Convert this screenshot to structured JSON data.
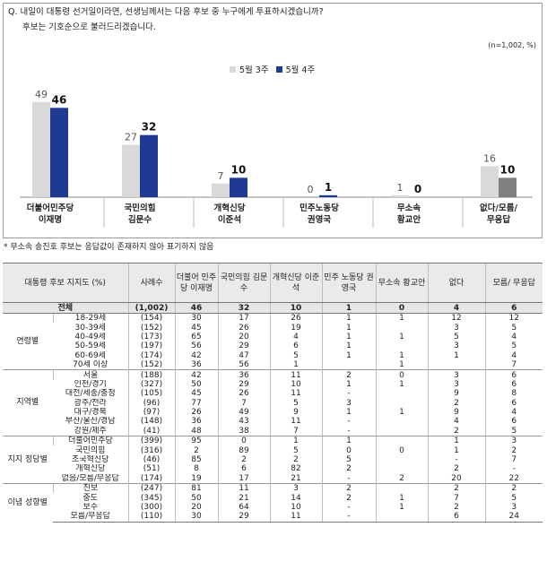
{
  "question": "Q. 내일이 대통령 선거일이라면, 선생님께서는 다음 후보 중 누구에게 투표하시겠습니까?",
  "question_note": "후보는 기호순으로 불러드리겠습니다.",
  "sample_note": "(n=1,002, %)",
  "footnote": "* 무소속 송진호 후보는 응답값이 존재하지 않아 표기하지 않음",
  "colors": {
    "week3": "#d9d9d9",
    "week4": "#1f3a93",
    "week4_undecided": "#7f7f7f"
  },
  "chart_data": {
    "type": "bar",
    "categories": [
      [
        "더불어민주당",
        "이재명"
      ],
      [
        "국민의힘",
        "김문수"
      ],
      [
        "개혁신당",
        "이준석"
      ],
      [
        "민주노동당",
        "권영국"
      ],
      [
        "무소속",
        "황교안"
      ],
      [
        "없다/모름/",
        "무응답"
      ]
    ],
    "series": [
      {
        "name": "5월 3주",
        "values": [
          49,
          27,
          7,
          0,
          1,
          16
        ]
      },
      {
        "name": "5월 4주",
        "values": [
          46,
          32,
          10,
          1,
          0,
          10
        ]
      }
    ],
    "ylim": [
      0,
      60
    ],
    "grid": false,
    "legend_position": "top"
  },
  "table": {
    "headers": [
      "대통령 후보 지지도 (%)",
      "",
      "사례수",
      "더불어 민주당 이재명",
      "국민의힘 김문수",
      "개혁신당 이준석",
      "민주 노동당 권영국",
      "무소속 황교안",
      "없다",
      "모름/ 무응답"
    ],
    "total": [
      "전체",
      "(1,002)",
      "46",
      "32",
      "10",
      "1",
      "0",
      "4",
      "6"
    ],
    "groups": [
      {
        "name": "연령별",
        "rows": [
          [
            "18-29세",
            "(154)",
            "30",
            "17",
            "26",
            "1",
            "1",
            "12",
            "12"
          ],
          [
            "30-39세",
            "(152)",
            "45",
            "26",
            "19",
            "1",
            "",
            "3",
            "5"
          ],
          [
            "40-49세",
            "(173)",
            "65",
            "20",
            "4",
            "1",
            "1",
            "5",
            "4"
          ],
          [
            "50-59세",
            "(197)",
            "56",
            "29",
            "6",
            "1",
            "",
            "3",
            "5"
          ],
          [
            "60-69세",
            "(174)",
            "42",
            "47",
            "5",
            "1",
            "1",
            "1",
            "4"
          ],
          [
            "70세 이상",
            "(152)",
            "36",
            "56",
            "1",
            "",
            "1",
            "",
            "7"
          ]
        ]
      },
      {
        "name": "지역별",
        "rows": [
          [
            "서울",
            "(188)",
            "42",
            "36",
            "11",
            "2",
            "0",
            "3",
            "6"
          ],
          [
            "인천/경기",
            "(327)",
            "50",
            "29",
            "10",
            "1",
            "1",
            "3",
            "6"
          ],
          [
            "대전/세종/충청",
            "(105)",
            "45",
            "26",
            "11",
            "-",
            "",
            "9",
            "8"
          ],
          [
            "광주/전라",
            "(96)",
            "77",
            "7",
            "5",
            "3",
            "",
            "2",
            "6"
          ],
          [
            "대구/경북",
            "(97)",
            "26",
            "49",
            "9",
            "1",
            "1",
            "9",
            "4"
          ],
          [
            "부산/울산/경남",
            "(148)",
            "36",
            "43",
            "11",
            "-",
            "",
            "4",
            "6"
          ],
          [
            "강원/제주",
            "(41)",
            "48",
            "38",
            "7",
            "-",
            "",
            "2",
            "5"
          ]
        ]
      },
      {
        "name": "지지 정당별",
        "rows": [
          [
            "더불어민주당",
            "(399)",
            "95",
            "0",
            "1",
            "1",
            "",
            "1",
            "3"
          ],
          [
            "국민의힘",
            "(316)",
            "2",
            "89",
            "5",
            "0",
            "0",
            "1",
            "2"
          ],
          [
            "조국혁신당",
            "(46)",
            "85",
            "2",
            "2",
            "5",
            "",
            "-",
            "7"
          ],
          [
            "개혁신당",
            "(51)",
            "8",
            "6",
            "82",
            "2",
            "",
            "2",
            "-"
          ],
          [
            "없음/모름/무응답",
            "(174)",
            "19",
            "17",
            "21",
            "-",
            "2",
            "20",
            "22"
          ]
        ]
      },
      {
        "name": "이념 성향별",
        "rows": [
          [
            "진보",
            "(247)",
            "81",
            "11",
            "3",
            "2",
            "",
            "2",
            "2"
          ],
          [
            "중도",
            "(345)",
            "50",
            "21",
            "14",
            "2",
            "1",
            "7",
            "5"
          ],
          [
            "보수",
            "(300)",
            "20",
            "64",
            "10",
            "-",
            "1",
            "2",
            "3"
          ],
          [
            "모름/무응답",
            "(110)",
            "30",
            "29",
            "11",
            "-",
            "",
            "6",
            "24"
          ]
        ]
      }
    ]
  }
}
